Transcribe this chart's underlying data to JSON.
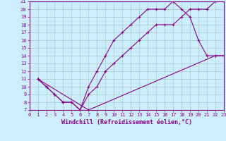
{
  "title": "",
  "xlabel": "Windchill (Refroidissement éolien,°C)",
  "bg_color": "#cceeff",
  "grid_color": "#aacccc",
  "line_color": "#880088",
  "xmin": 0,
  "xmax": 23,
  "ymin": 7,
  "ymax": 21,
  "xticks": [
    0,
    1,
    2,
    3,
    4,
    5,
    6,
    7,
    8,
    9,
    10,
    11,
    12,
    13,
    14,
    15,
    16,
    17,
    18,
    19,
    20,
    21,
    22,
    23
  ],
  "yticks": [
    7,
    8,
    9,
    10,
    11,
    12,
    13,
    14,
    15,
    16,
    17,
    18,
    19,
    20,
    21
  ],
  "line1_x": [
    1,
    2,
    3,
    4,
    5,
    6,
    7,
    8,
    9,
    10,
    11,
    12,
    13,
    14,
    15,
    16,
    17,
    18,
    19,
    20,
    21,
    22,
    23
  ],
  "line1_y": [
    11,
    10,
    9,
    8,
    8,
    7,
    10,
    12,
    14,
    16,
    17,
    18,
    19,
    20,
    20,
    20,
    21,
    20,
    19,
    16,
    14,
    14,
    14
  ],
  "line2_x": [
    1,
    2,
    3,
    4,
    5,
    6,
    7,
    8,
    9,
    10,
    11,
    12,
    13,
    14,
    15,
    16,
    17,
    18,
    19,
    20,
    21,
    22,
    23
  ],
  "line2_y": [
    11,
    10,
    9,
    8,
    8,
    7,
    9,
    10,
    12,
    13,
    14,
    15,
    16,
    17,
    18,
    18,
    18,
    19,
    20,
    20,
    20,
    21,
    21
  ],
  "line3_x": [
    1,
    7,
    22,
    23
  ],
  "line3_y": [
    11,
    7,
    14,
    14
  ],
  "tick_fontsize": 5,
  "xlabel_fontsize": 6,
  "marker_size": 3,
  "linewidth": 0.8
}
